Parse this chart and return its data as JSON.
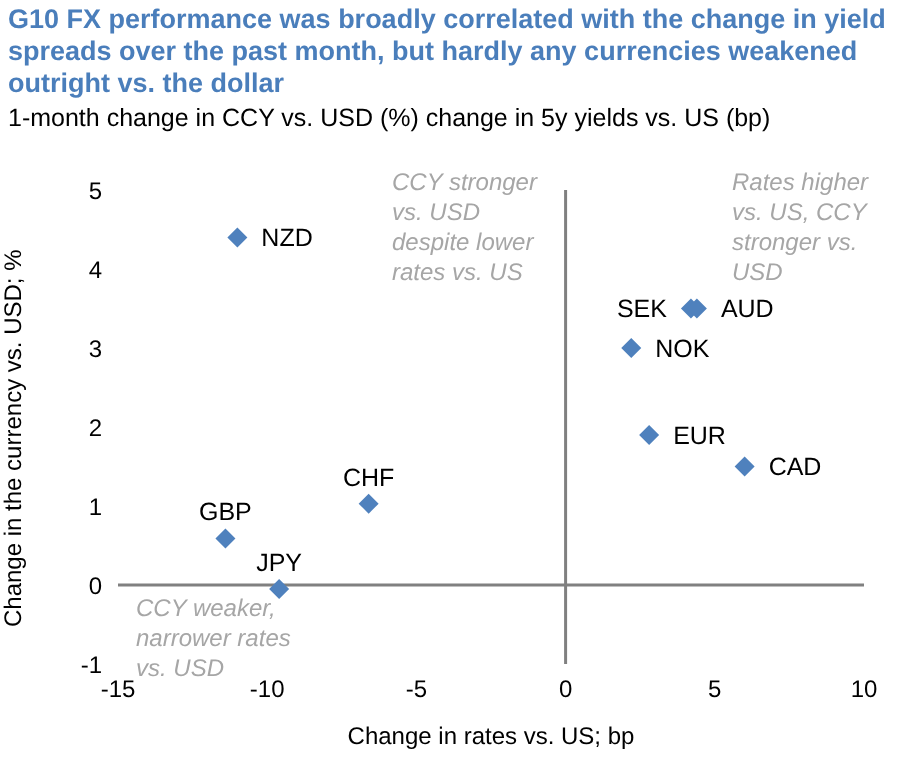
{
  "chart_data": {
    "type": "scatter",
    "title": "G10 FX performance was broadly correlated with the change in yield spreads over the past month, but hardly any currencies weakened outright vs. the dollar",
    "subtitle": "1-month change in CCY vs. USD (%) change in 5y yields vs. US (bp)",
    "xlabel": "Change in rates vs. US; bp",
    "ylabel": "Change in the currency vs. USD; %",
    "x": [
      -11.0,
      4.2,
      4.4,
      2.2,
      2.8,
      6.0,
      -6.6,
      -11.4,
      -9.6
    ],
    "series": [
      {
        "color": "#4f81bd",
        "values": [
          4.4,
          3.5,
          3.5,
          3.0,
          1.9,
          1.5,
          1.03,
          0.59,
          -0.05
        ]
      }
    ],
    "annotations": [
      {
        "text": "NZD",
        "x": -11.0,
        "y": 4.4
      },
      {
        "text": "SEK",
        "x": 4.2,
        "y": 3.5
      },
      {
        "text": "AUD",
        "x": 4.4,
        "y": 3.5
      },
      {
        "text": "NOK",
        "x": 2.2,
        "y": 3.0
      },
      {
        "text": "EUR",
        "x": 2.8,
        "y": 1.9
      },
      {
        "text": "CAD",
        "x": 6.0,
        "y": 1.5
      },
      {
        "text": "CHF",
        "x": -6.6,
        "y": 1.03
      },
      {
        "text": "GBP",
        "x": -11.4,
        "y": 0.59
      },
      {
        "text": "JPY",
        "x": -9.6,
        "y": -0.05
      },
      "CCY stronger vs. USD despite lower rates vs. US",
      "Rates higher vs. US, CCY stronger vs. USD",
      "CCY weaker, narrower rates vs. USD"
    ],
    "xlim": [
      -15,
      10
    ],
    "xticks": [
      -15,
      -10,
      -5,
      0,
      5,
      10
    ],
    "ylim": [
      -1,
      5
    ],
    "yticks": [
      -1,
      0,
      1,
      2,
      3,
      4,
      5
    ],
    "marker": "diamond",
    "legend": false
  }
}
